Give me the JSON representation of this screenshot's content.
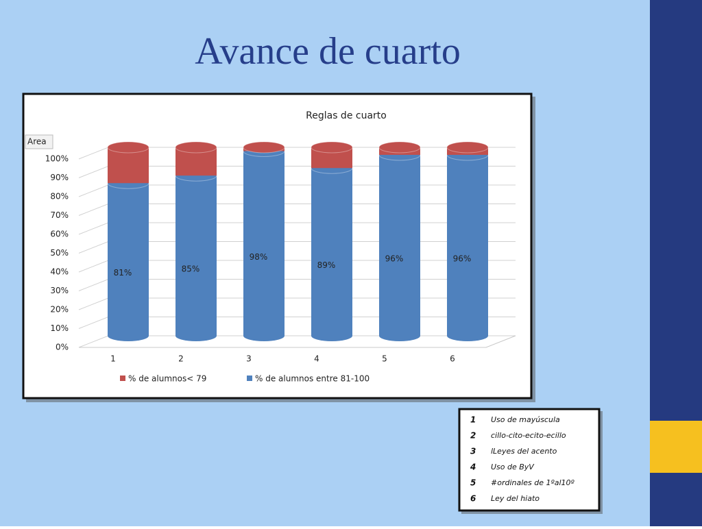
{
  "title": "Avance de cuarto",
  "chart_data": {
    "type": "stacked_bar",
    "title": "Reglas de cuarto",
    "area_label": "Area",
    "categories": [
      "1",
      "2",
      "3",
      "4",
      "5",
      "6"
    ],
    "series": [
      {
        "name": "% de alumnos< 79",
        "color": "#c0504d",
        "values": [
          19,
          15,
          2,
          11,
          4,
          4
        ]
      },
      {
        "name": "% de alumnos entre 81-100",
        "color": "#4f81bd",
        "values": [
          81,
          85,
          98,
          89,
          96,
          96
        ],
        "value_labels": [
          "81%",
          "85%",
          "98%",
          "89%",
          "96%",
          "96%"
        ]
      }
    ],
    "ylim": [
      0,
      100
    ],
    "yticks": [
      {
        "value": 0,
        "label": "0%"
      },
      {
        "value": 10,
        "label": "10%"
      },
      {
        "value": 20,
        "label": "20%"
      },
      {
        "value": 30,
        "label": "30%"
      },
      {
        "value": 40,
        "label": "40%"
      },
      {
        "value": 50,
        "label": "50%"
      },
      {
        "value": 60,
        "label": "60%"
      },
      {
        "value": 70,
        "label": "70%"
      },
      {
        "value": 80,
        "label": "80%"
      },
      {
        "value": 90,
        "label": "90%"
      },
      {
        "value": 100,
        "label": "100%"
      }
    ],
    "grid": true
  },
  "legend_table": {
    "rows": [
      [
        "1",
        "Uso de mayúscula"
      ],
      [
        "2",
        "cillo-cito-ecito-ecillo"
      ],
      [
        "3",
        "lLeyes del acento"
      ],
      [
        "4",
        "Uso de ByV"
      ],
      [
        "5",
        "#ordinales de 1ºal10º"
      ],
      [
        "6",
        "Ley del hiato"
      ]
    ]
  }
}
